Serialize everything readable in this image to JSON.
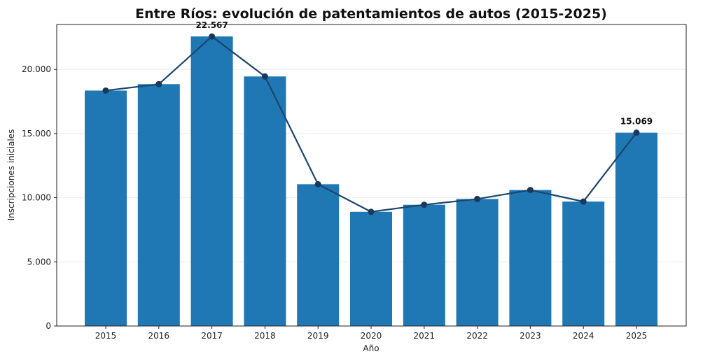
{
  "chart_data": {
    "type": "bar",
    "title": "Entre Ríos: evolución de patentamientos de autos (2015-2025)",
    "xlabel": "Año",
    "ylabel": "Inscripciones iniciales",
    "categories": [
      "2015",
      "2016",
      "2017",
      "2018",
      "2019",
      "2020",
      "2021",
      "2022",
      "2023",
      "2024",
      "2025"
    ],
    "values": [
      18350,
      18850,
      22567,
      19450,
      11050,
      8900,
      9450,
      9900,
      10600,
      9700,
      15069
    ],
    "overlay_line": true,
    "ylim": [
      0,
      23500
    ],
    "yticks": [
      0,
      5000,
      10000,
      15000,
      20000
    ],
    "ytick_labels": [
      "0",
      "5.000",
      "10.000",
      "15.000",
      "20.000"
    ],
    "data_labels": [
      {
        "category": "2017",
        "text": "22.567"
      },
      {
        "category": "2025",
        "text": "15.069"
      }
    ],
    "grid": "horizontal",
    "colors": {
      "bar": "#1f77b4",
      "line": "#1a466e",
      "marker": "#1a3a5c"
    }
  }
}
